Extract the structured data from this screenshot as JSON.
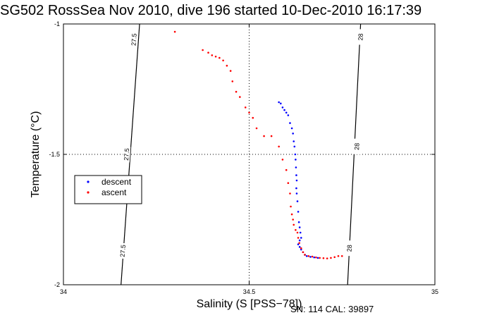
{
  "chart_data": {
    "type": "scatter",
    "title": "SG502 RossSea Nov 2010, dive 196 started 10-Dec-2010 16:17:39",
    "xlabel": "Salinity (S [PSS−78])",
    "ylabel": "Temperature (°C)",
    "xlim": [
      34,
      35
    ],
    "ylim": [
      -2,
      -1
    ],
    "xticks": [
      "34",
      "34.5",
      "35"
    ],
    "yticks": [
      "-1",
      "-1.5",
      "-2"
    ],
    "grid": "dotted at 34.5 and -1.5",
    "legend_position": "left",
    "colors": {
      "descent": "#0000ff",
      "ascent": "#ff0000",
      "contour": "#000000"
    },
    "isopycnals": [
      {
        "label": "27.5",
        "points": [
          [
            34.205,
            -1
          ],
          [
            34.155,
            -2
          ]
        ],
        "label_positions": [
          [
            34.19,
            -1.06
          ],
          [
            34.17,
            -1.5
          ],
          [
            34.16,
            -1.87
          ]
        ]
      },
      {
        "label": "28",
        "points": [
          [
            34.8,
            -1
          ],
          [
            34.765,
            -2
          ]
        ],
        "label_positions": [
          [
            34.8,
            -1.05
          ],
          [
            34.79,
            -1.47
          ],
          [
            34.77,
            -1.86
          ]
        ]
      }
    ],
    "series": [
      {
        "name": "descent",
        "points": [
          [
            34.58,
            -1.3
          ],
          [
            34.585,
            -1.305
          ],
          [
            34.59,
            -1.32
          ],
          [
            34.595,
            -1.33
          ],
          [
            34.6,
            -1.34
          ],
          [
            34.605,
            -1.35
          ],
          [
            34.61,
            -1.38
          ],
          [
            34.615,
            -1.4
          ],
          [
            34.618,
            -1.42
          ],
          [
            34.62,
            -1.45
          ],
          [
            34.622,
            -1.47
          ],
          [
            34.624,
            -1.5
          ],
          [
            34.625,
            -1.52
          ],
          [
            34.626,
            -1.55
          ],
          [
            34.627,
            -1.58
          ],
          [
            34.628,
            -1.6
          ],
          [
            34.627,
            -1.63
          ],
          [
            34.628,
            -1.65
          ],
          [
            34.63,
            -1.68
          ],
          [
            34.632,
            -1.72
          ],
          [
            34.634,
            -1.76
          ],
          [
            34.636,
            -1.78
          ],
          [
            34.638,
            -1.8
          ],
          [
            34.64,
            -1.82
          ],
          [
            34.636,
            -1.83
          ],
          [
            34.632,
            -1.845
          ],
          [
            34.636,
            -1.855
          ],
          [
            34.64,
            -1.865
          ],
          [
            34.645,
            -1.875
          ],
          [
            34.65,
            -1.885
          ],
          [
            34.655,
            -1.89
          ],
          [
            34.665,
            -1.893
          ],
          [
            34.675,
            -1.895
          ],
          [
            34.685,
            -1.897
          ]
        ]
      },
      {
        "name": "ascent",
        "points": [
          [
            34.3,
            -1.03
          ],
          [
            34.375,
            -1.1
          ],
          [
            34.39,
            -1.11
          ],
          [
            34.4,
            -1.12
          ],
          [
            34.41,
            -1.125
          ],
          [
            34.42,
            -1.13
          ],
          [
            34.43,
            -1.14
          ],
          [
            34.44,
            -1.16
          ],
          [
            34.45,
            -1.18
          ],
          [
            34.455,
            -1.22
          ],
          [
            34.465,
            -1.26
          ],
          [
            34.475,
            -1.28
          ],
          [
            34.49,
            -1.32
          ],
          [
            34.5,
            -1.34
          ],
          [
            34.51,
            -1.36
          ],
          [
            34.52,
            -1.4
          ],
          [
            34.54,
            -1.43
          ],
          [
            34.56,
            -1.43
          ],
          [
            34.58,
            -1.47
          ],
          [
            34.59,
            -1.52
          ],
          [
            34.6,
            -1.56
          ],
          [
            34.605,
            -1.61
          ],
          [
            34.61,
            -1.65
          ],
          [
            34.612,
            -1.7
          ],
          [
            34.615,
            -1.73
          ],
          [
            34.618,
            -1.75
          ],
          [
            34.62,
            -1.77
          ],
          [
            34.625,
            -1.79
          ],
          [
            34.63,
            -1.8
          ],
          [
            34.632,
            -1.82
          ],
          [
            34.635,
            -1.84
          ],
          [
            34.64,
            -1.86
          ],
          [
            34.645,
            -1.875
          ],
          [
            34.65,
            -1.885
          ],
          [
            34.66,
            -1.89
          ],
          [
            34.67,
            -1.892
          ],
          [
            34.68,
            -1.895
          ],
          [
            34.69,
            -1.897
          ],
          [
            34.7,
            -1.898
          ],
          [
            34.71,
            -1.899
          ],
          [
            34.72,
            -1.897
          ],
          [
            34.73,
            -1.894
          ],
          [
            34.74,
            -1.89
          ],
          [
            34.75,
            -1.89
          ]
        ]
      }
    ]
  },
  "caption": "SN: 114  CAL: 39897"
}
